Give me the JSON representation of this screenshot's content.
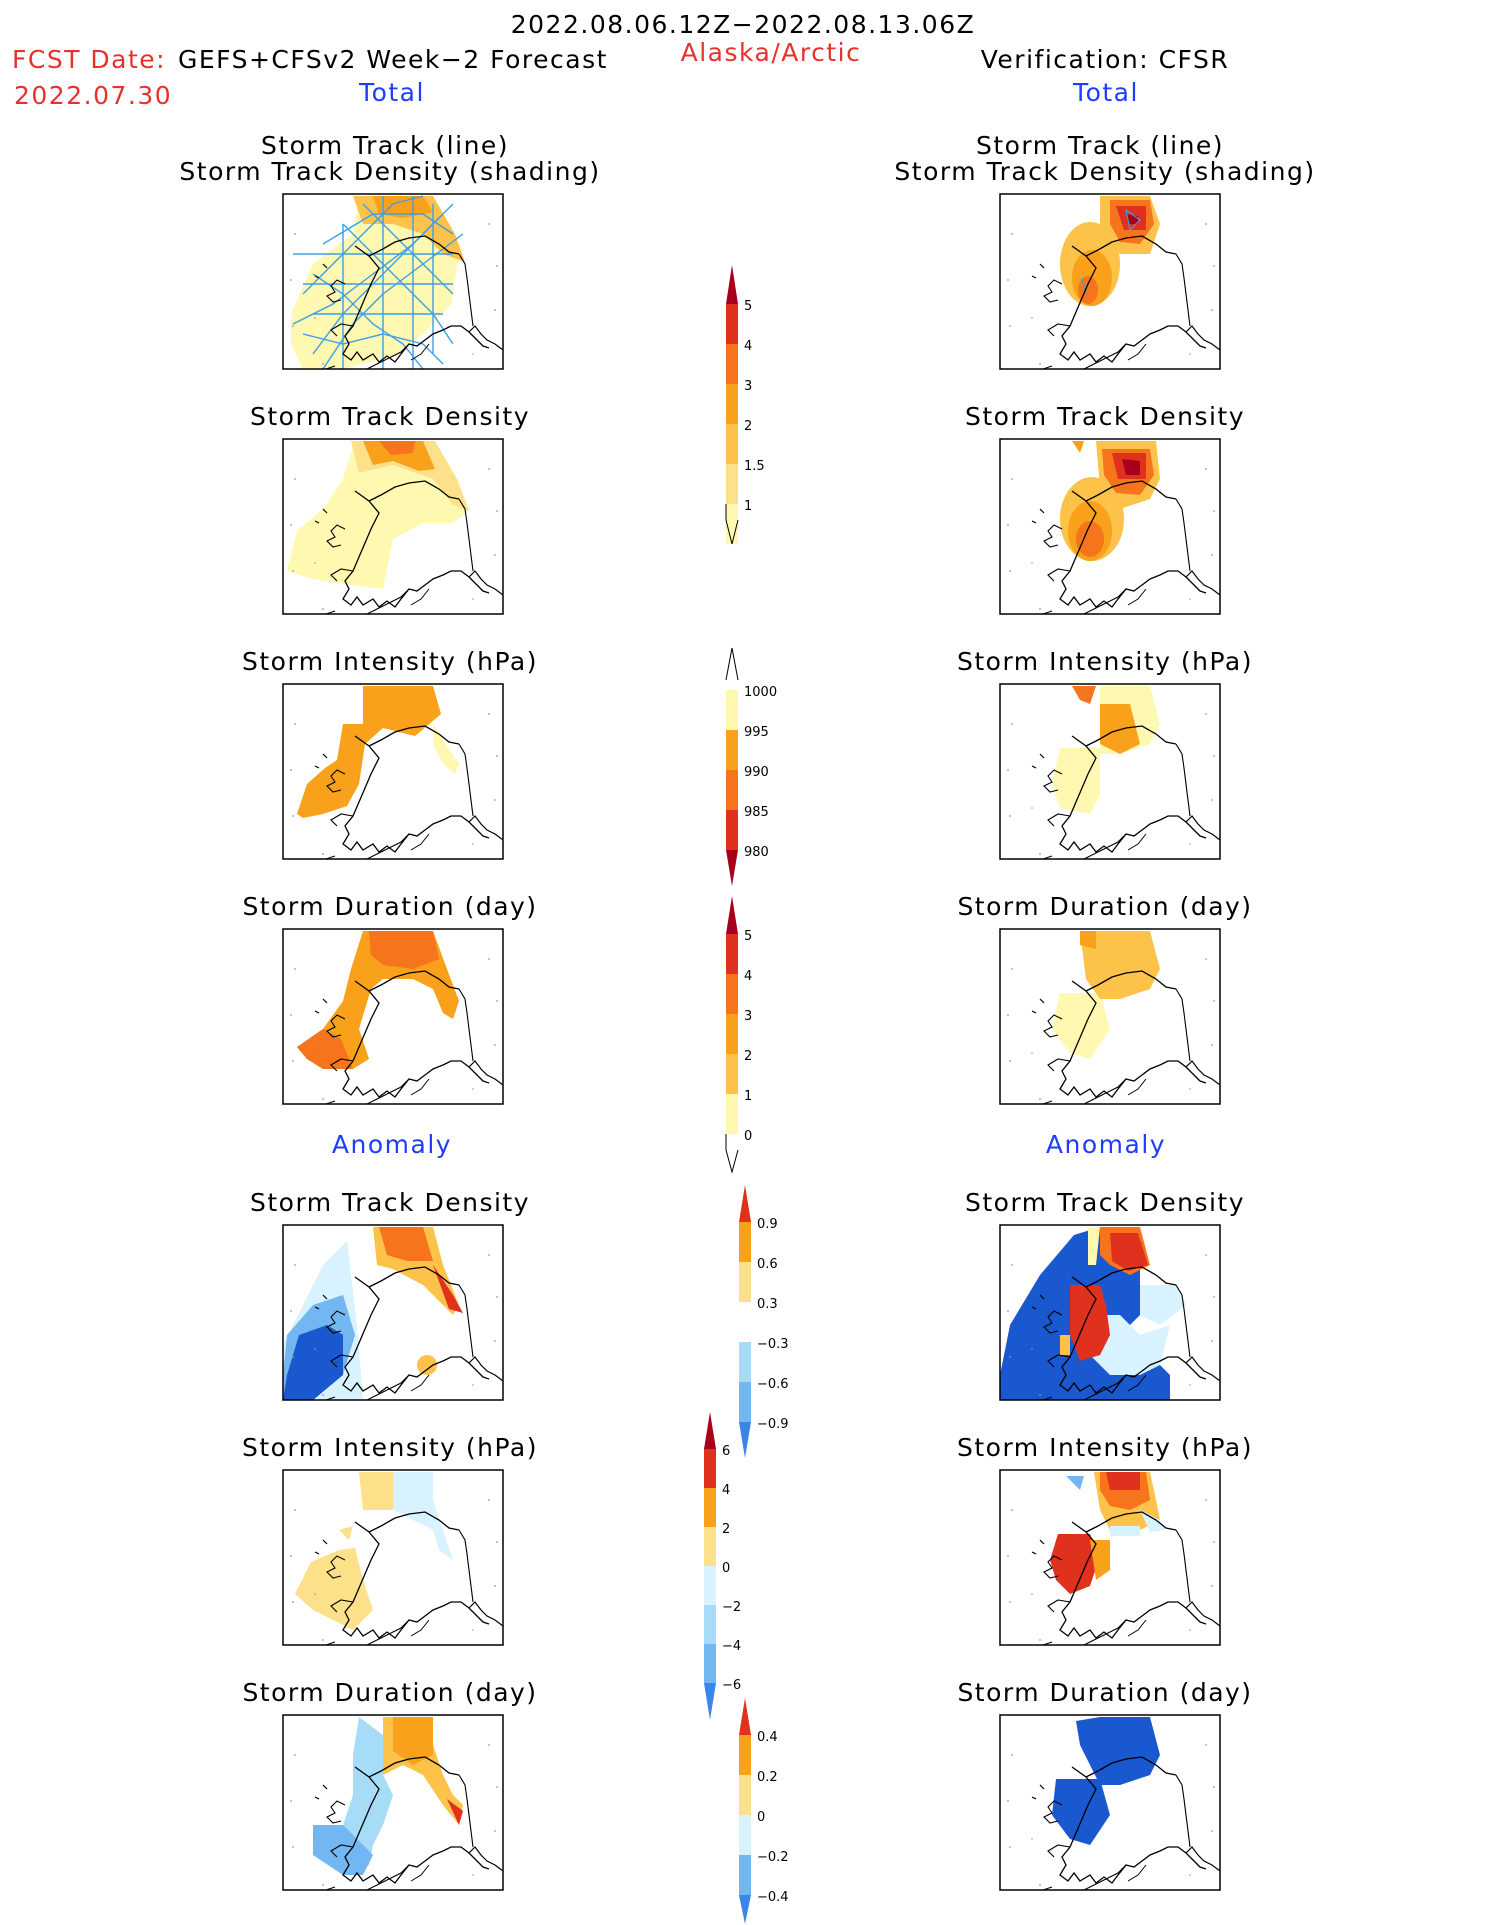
{
  "header": {
    "period": "2022.08.06.12Z−2022.08.13.06Z",
    "fcst_label": "FCST Date:",
    "fcst_model": "GEFS+CFSv2 Week−2 Forecast",
    "fcst_date": "2022.07.30",
    "region": "Alaska/Arctic",
    "verification": "Verification: CFSR"
  },
  "sections": {
    "total": "Total",
    "anomaly": "Anomaly"
  },
  "panels": {
    "track_line": "Storm Track (line)",
    "track_shading": "Storm Track Density (shading)",
    "density": "Storm Track Density",
    "intensity": "Storm Intensity (hPa)",
    "duration": "Storm Duration (day)"
  },
  "colors": {
    "c1": "#fff8b0",
    "c15": "#fde08a",
    "c2": "#fcc24a",
    "c3": "#f9a11b",
    "c4": "#f5741c",
    "c5": "#e0301e",
    "c6": "#a8001c",
    "b1": "#d8f3ff",
    "b2": "#a7dcf9",
    "b3": "#72b7f2",
    "b4": "#3a86e8",
    "b5": "#1a58d0",
    "track": "#3aa0e8"
  },
  "colorbars": [
    {
      "name": "total-density",
      "labels": [
        "5",
        "4",
        "3",
        "2",
        "1.5",
        "1"
      ]
    },
    {
      "name": "total-intensity",
      "labels": [
        "1000",
        "995",
        "990",
        "985",
        "980"
      ]
    },
    {
      "name": "total-duration",
      "labels": [
        "5",
        "4",
        "3",
        "2",
        "1",
        "0"
      ]
    },
    {
      "name": "anom-density",
      "labels": [
        "0.9",
        "0.6",
        "0.3",
        "−0.3",
        "−0.6",
        "−0.9"
      ]
    },
    {
      "name": "anom-intensity",
      "labels": [
        "6",
        "4",
        "2",
        "0",
        "−2",
        "−4",
        "−6"
      ]
    },
    {
      "name": "anom-duration",
      "labels": [
        "0.4",
        "0.2",
        "0",
        "−0.2",
        "−0.4"
      ]
    }
  ]
}
